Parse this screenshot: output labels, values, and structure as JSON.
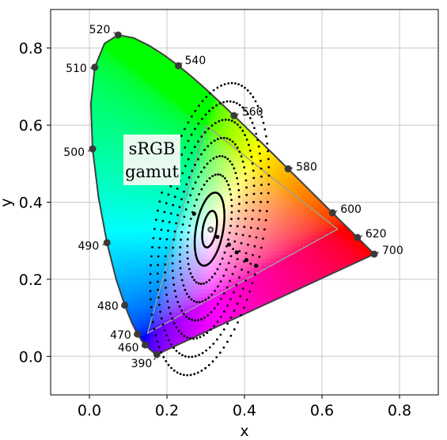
{
  "chart_data": {
    "type": "scatter",
    "title": "",
    "xlabel": "x",
    "ylabel": "y",
    "xlim": [
      -0.1,
      0.9
    ],
    "ylim": [
      -0.1,
      0.9
    ],
    "xticks": [
      "0.0",
      "0.2",
      "0.4",
      "0.6",
      "0.8"
    ],
    "yticks": [
      "0.0",
      "0.2",
      "0.4",
      "0.6",
      "0.8"
    ],
    "grid": true,
    "spectral_locus": [
      [
        0.1741,
        0.005
      ],
      [
        0.1738,
        0.0049
      ],
      [
        0.1736,
        0.0049
      ],
      [
        0.1733,
        0.0048
      ],
      [
        0.173,
        0.0048
      ],
      [
        0.1726,
        0.0048
      ],
      [
        0.1721,
        0.0048
      ],
      [
        0.1714,
        0.0051
      ],
      [
        0.1703,
        0.0058
      ],
      [
        0.1689,
        0.0069
      ],
      [
        0.1669,
        0.0086
      ],
      [
        0.1644,
        0.0109
      ],
      [
        0.1611,
        0.0138
      ],
      [
        0.1566,
        0.0177
      ],
      [
        0.151,
        0.0227
      ],
      [
        0.144,
        0.0297
      ],
      [
        0.1355,
        0.0399
      ],
      [
        0.1241,
        0.0578
      ],
      [
        0.1096,
        0.0868
      ],
      [
        0.0913,
        0.1327
      ],
      [
        0.0687,
        0.2007
      ],
      [
        0.0454,
        0.295
      ],
      [
        0.0235,
        0.4127
      ],
      [
        0.0082,
        0.5384
      ],
      [
        0.0039,
        0.6548
      ],
      [
        0.0139,
        0.7502
      ],
      [
        0.0389,
        0.812
      ],
      [
        0.0743,
        0.8338
      ],
      [
        0.1142,
        0.8262
      ],
      [
        0.1547,
        0.8059
      ],
      [
        0.1929,
        0.7816
      ],
      [
        0.2296,
        0.7543
      ],
      [
        0.2658,
        0.7243
      ],
      [
        0.3016,
        0.6923
      ],
      [
        0.3373,
        0.6589
      ],
      [
        0.3731,
        0.6245
      ],
      [
        0.4087,
        0.5896
      ],
      [
        0.4441,
        0.5547
      ],
      [
        0.4788,
        0.5202
      ],
      [
        0.5125,
        0.4866
      ],
      [
        0.5448,
        0.4544
      ],
      [
        0.5752,
        0.4242
      ],
      [
        0.6029,
        0.3965
      ],
      [
        0.627,
        0.3725
      ],
      [
        0.6482,
        0.3514
      ],
      [
        0.6658,
        0.334
      ],
      [
        0.6801,
        0.3197
      ],
      [
        0.6915,
        0.3083
      ],
      [
        0.7006,
        0.2993
      ],
      [
        0.7079,
        0.292
      ],
      [
        0.714,
        0.2859
      ],
      [
        0.719,
        0.2809
      ],
      [
        0.723,
        0.277
      ],
      [
        0.726,
        0.274
      ],
      [
        0.7283,
        0.2717
      ],
      [
        0.73,
        0.27
      ],
      [
        0.7311,
        0.2689
      ],
      [
        0.732,
        0.268
      ],
      [
        0.7327,
        0.2673
      ],
      [
        0.7334,
        0.2666
      ],
      [
        0.734,
        0.266
      ],
      [
        0.7344,
        0.2656
      ],
      [
        0.7347,
        0.2653
      ]
    ],
    "wavelength_points": [
      {
        "label": "390",
        "x": 0.1741,
        "y": 0.005
      },
      {
        "label": "460",
        "x": 0.144,
        "y": 0.0297
      },
      {
        "label": "470",
        "x": 0.1241,
        "y": 0.0578
      },
      {
        "label": "480",
        "x": 0.0913,
        "y": 0.1327
      },
      {
        "label": "490",
        "x": 0.0454,
        "y": 0.295
      },
      {
        "label": "500",
        "x": 0.0082,
        "y": 0.5384
      },
      {
        "label": "510",
        "x": 0.0139,
        "y": 0.7502
      },
      {
        "label": "520",
        "x": 0.0743,
        "y": 0.8338
      },
      {
        "label": "540",
        "x": 0.2296,
        "y": 0.7543
      },
      {
        "label": "560",
        "x": 0.3731,
        "y": 0.6245
      },
      {
        "label": "580",
        "x": 0.5125,
        "y": 0.4866
      },
      {
        "label": "600",
        "x": 0.627,
        "y": 0.3725
      },
      {
        "label": "620",
        "x": 0.6915,
        "y": 0.3083
      },
      {
        "label": "700",
        "x": 0.7347,
        "y": 0.2653
      }
    ],
    "srgb_gamut": {
      "label_lines": [
        "sRGB",
        "gamut"
      ],
      "vertices": [
        [
          0.64,
          0.33
        ],
        [
          0.3,
          0.6
        ],
        [
          0.15,
          0.06
        ]
      ]
    },
    "macadam_ellipses": {
      "center": [
        0.31,
        0.33
      ],
      "scales": [
        1,
        2,
        3,
        4,
        5,
        6,
        7,
        8
      ],
      "semi_axes": [
        0.0175,
        0.048
      ],
      "rotation_deg": 80,
      "dots_per_scale": [
        0,
        0,
        50,
        60,
        70,
        80,
        90,
        100
      ]
    },
    "white_point": [
      0.3127,
      0.329
    ],
    "extra_points": [
      [
        0.27,
        0.37
      ],
      [
        0.33,
        0.31
      ],
      [
        0.36,
        0.29
      ],
      [
        0.38,
        0.27
      ],
      [
        0.405,
        0.25
      ],
      [
        0.43,
        0.235
      ]
    ],
    "colors": {
      "locus_outline": "#404040",
      "marker": "#3a3a3a",
      "gamut_outline": "#a0a0a0",
      "grid": "#c8c8c8",
      "gamut_label_bg": "#e6faf0"
    }
  }
}
